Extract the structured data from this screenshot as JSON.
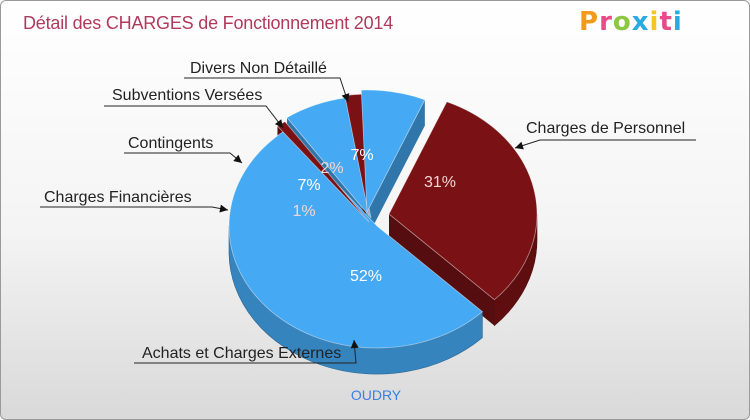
{
  "header": {
    "title": "Détail des CHARGES de Fonctionnement 2014"
  },
  "logo": {
    "letters": [
      "P",
      "r",
      "o",
      "x",
      "i",
      "t",
      "i"
    ],
    "colors": [
      "#f29a1c",
      "#e84a8a",
      "#8dc63f",
      "#29abe2",
      "#f7c51d",
      "#e84a8a",
      "#29abe2"
    ]
  },
  "footer": {
    "commune": "OUDRY"
  },
  "chart_data": {
    "type": "pie",
    "title": "Détail des CHARGES de Fonctionnement 2014",
    "slices": [
      {
        "label": "Charges de Personnel",
        "value": 31,
        "pct_label": "31%",
        "color": "#7a1215"
      },
      {
        "label": "Achats et Charges Externes",
        "value": 52,
        "pct_label": "52%",
        "color": "#45a9f3"
      },
      {
        "label": "Charges Financières",
        "value": 1,
        "pct_label": "1%",
        "color": "#7a1215"
      },
      {
        "label": "Contingents",
        "value": 7,
        "pct_label": "7%",
        "color": "#45a9f3"
      },
      {
        "label": "Subventions Versées",
        "value": 2,
        "pct_label": "2%",
        "color": "#7a1215"
      },
      {
        "label": "Divers Non Détaillé",
        "value": 7,
        "pct_label": "7%",
        "color": "#45a9f3"
      }
    ]
  }
}
